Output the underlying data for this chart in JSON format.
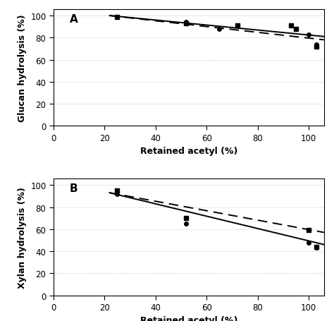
{
  "panel_A": {
    "label": "A",
    "ylabel": "Glucan hydrolysis (%)",
    "xlabel": "Retained acetyl (%)",
    "xlim": [
      0,
      106
    ],
    "ylim": [
      0,
      106
    ],
    "yticks": [
      0,
      20,
      40,
      60,
      80,
      100
    ],
    "xticks": [
      0,
      20,
      40,
      60,
      80,
      100
    ],
    "circles": {
      "x": [
        25,
        52,
        65,
        100,
        103
      ],
      "y": [
        99,
        94,
        88,
        83,
        74
      ]
    },
    "squares": {
      "x": [
        25,
        52,
        72,
        93,
        95,
        103
      ],
      "y": [
        99,
        93,
        91,
        91,
        88,
        72
      ]
    },
    "solid_line": {
      "x": [
        22,
        106
      ],
      "y": [
        100,
        81
      ]
    },
    "dashed_line": {
      "x": [
        22,
        106
      ],
      "y": [
        100,
        78
      ]
    }
  },
  "panel_B": {
    "label": "B",
    "ylabel": "Xylan hydrolysis (%)",
    "xlabel": "Retained acetyl (%)",
    "xlim": [
      0,
      106
    ],
    "ylim": [
      0,
      106
    ],
    "yticks": [
      0,
      20,
      40,
      60,
      80,
      100
    ],
    "xticks": [
      0,
      20,
      40,
      60,
      80,
      100
    ],
    "circles": {
      "x": [
        25,
        52,
        100,
        103
      ],
      "y": [
        92,
        65,
        48,
        43
      ]
    },
    "squares": {
      "x": [
        25,
        52,
        100,
        103
      ],
      "y": [
        95,
        70,
        59,
        44
      ]
    },
    "solid_line": {
      "x": [
        22,
        106
      ],
      "y": [
        93,
        46
      ]
    },
    "dashed_line": {
      "x": [
        22,
        106
      ],
      "y": [
        93,
        57
      ]
    }
  },
  "figure_bg": "#ffffff",
  "axes_bg": "#ffffff",
  "grid_color": "#bbbbbb",
  "line_color": "#000000",
  "marker_color": "#000000"
}
